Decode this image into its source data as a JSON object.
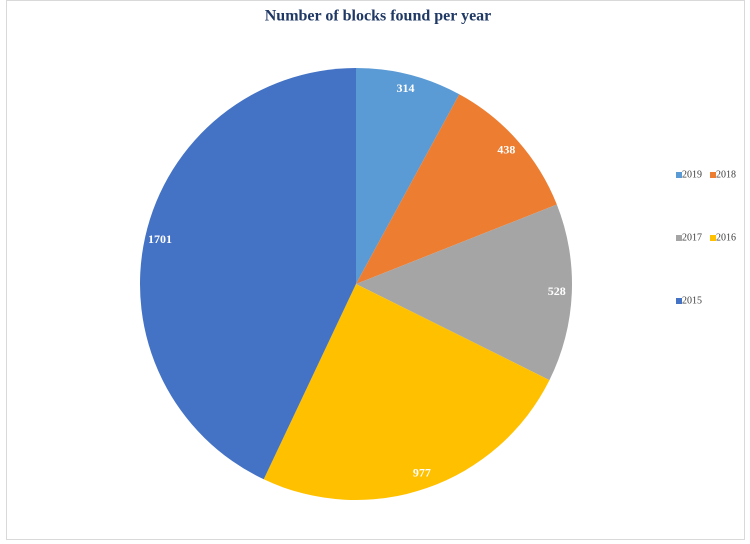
{
  "chart_data": {
    "type": "pie",
    "title": "Number of blocks found per year",
    "categories": [
      "2019",
      "2018",
      "2017",
      "2016",
      "2015"
    ],
    "values": [
      314,
      438,
      528,
      977,
      1701
    ],
    "colors": [
      "#5b9bd5",
      "#ed7d31",
      "#a5a5a5",
      "#ffc000",
      "#4472c4"
    ],
    "legend": "right"
  }
}
